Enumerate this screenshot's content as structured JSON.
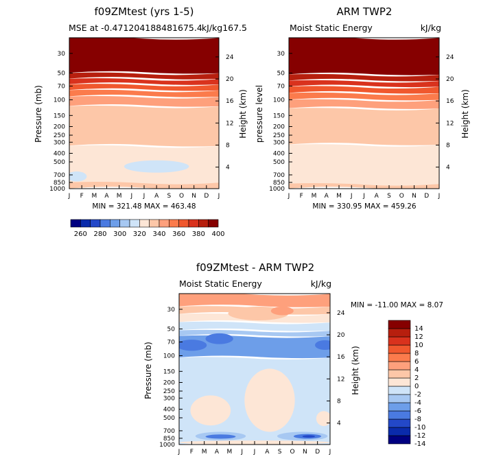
{
  "chart_data": [
    {
      "id": "p1",
      "type": "heatmap",
      "title": "f09ZMtest (yrs 1-5)",
      "subtitle_left": "MSE at -0.471204188481675.4",
      "subtitle_right": "kJ/kg167.5",
      "ylabel": "Pressure (mb)",
      "ylabel_right": "Height (km)",
      "months": [
        "J",
        "F",
        "M",
        "A",
        "M",
        "J",
        "J",
        "A",
        "S",
        "O",
        "N",
        "D",
        "J"
      ],
      "pressure_ticks": [
        30,
        50,
        70,
        100,
        150,
        200,
        250,
        300,
        400,
        500,
        700,
        850,
        1000
      ],
      "height_ticks": [
        4,
        8,
        12,
        16,
        20,
        24
      ],
      "min_max": "MIN = 321.48 MAX = 463.48",
      "layers": [
        {
          "p_top": 10,
          "p_bot": 50,
          "color": "#860000"
        },
        {
          "p_top": 50,
          "p_bot": 58,
          "color": "#b71f0e"
        },
        {
          "p_top": 58,
          "p_bot": 67,
          "color": "#d9321d"
        },
        {
          "p_top": 67,
          "p_bot": 78,
          "color": "#f0582e"
        },
        {
          "p_top": 78,
          "p_bot": 92,
          "color": "#fb7b4c"
        },
        {
          "p_top": 92,
          "p_bot": 118,
          "color": "#fea07c"
        },
        {
          "p_top": 118,
          "p_bot": 330,
          "color": "#fdc7a8"
        },
        {
          "p_top": 330,
          "p_bot": 1000,
          "color": "#fde6d6"
        },
        {
          "p_top": 850,
          "p_bot": 1000,
          "color": "#fdc7a8"
        }
      ],
      "blobs": [
        {
          "month": 0.6,
          "p": 730,
          "rx_months": 0.8,
          "p_top": 640,
          "p_bot": 830,
          "color": "#cfe4f8"
        },
        {
          "month": 7.0,
          "p": 560,
          "rx_months": 2.6,
          "p_top": 480,
          "p_bot": 660,
          "color": "#cfe4f8"
        }
      ]
    },
    {
      "id": "p2",
      "type": "heatmap",
      "title": "ARM TWP2",
      "subtitle_left": "Moist Static Energy",
      "subtitle_right": "kJ/kg",
      "ylabel": "pressure level",
      "ylabel_right": "Height (km)",
      "months": [
        "J",
        "F",
        "M",
        "A",
        "M",
        "J",
        "J",
        "A",
        "S",
        "O",
        "N",
        "D",
        "J"
      ],
      "pressure_ticks": [
        30,
        50,
        70,
        100,
        150,
        200,
        250,
        300,
        400,
        500,
        700,
        850,
        1000
      ],
      "height_ticks": [
        4,
        8,
        12,
        16,
        20,
        24
      ],
      "min_max": "MIN = 330.95 MAX = 459.26",
      "layers": [
        {
          "p_top": 10,
          "p_bot": 52,
          "color": "#860000"
        },
        {
          "p_top": 52,
          "p_bot": 61,
          "color": "#b71f0e"
        },
        {
          "p_top": 61,
          "p_bot": 71,
          "color": "#d9321d"
        },
        {
          "p_top": 71,
          "p_bot": 84,
          "color": "#f0582e"
        },
        {
          "p_top": 84,
          "p_bot": 100,
          "color": "#fb7b4c"
        },
        {
          "p_top": 100,
          "p_bot": 125,
          "color": "#fea07c"
        },
        {
          "p_top": 125,
          "p_bot": 320,
          "color": "#fdc7a8"
        },
        {
          "p_top": 320,
          "p_bot": 1000,
          "color": "#fde6d6"
        },
        {
          "p_top": 880,
          "p_bot": 1000,
          "color": "#fdc7a8"
        }
      ],
      "blobs": []
    },
    {
      "id": "p3",
      "type": "heatmap",
      "title": "f09ZMtest - ARM TWP2",
      "subtitle_left": "Moist Static Energy",
      "subtitle_right": "kJ/kg",
      "ylabel": "Pressure (mb)",
      "ylabel_right": "Height (km)",
      "months": [
        "J",
        "F",
        "M",
        "A",
        "M",
        "J",
        "J",
        "A",
        "S",
        "O",
        "N",
        "D",
        "J"
      ],
      "pressure_ticks": [
        30,
        50,
        70,
        100,
        150,
        200,
        250,
        300,
        400,
        500,
        700,
        850,
        1000
      ],
      "height_ticks": [
        4,
        8,
        12,
        16,
        20,
        24
      ],
      "min_max": "MIN = -11.00 MAX =    8.07",
      "layers": [
        {
          "p_top": 10,
          "p_bot": 28,
          "color": "#fea07c"
        },
        {
          "p_top": 28,
          "p_bot": 34,
          "color": "#fdc7a8"
        },
        {
          "p_top": 34,
          "p_bot": 42,
          "color": "#fde6d6"
        },
        {
          "p_top": 42,
          "p_bot": 52,
          "color": "#cfe4f8"
        },
        {
          "p_top": 52,
          "p_bot": 60,
          "color": "#a7c8f2"
        },
        {
          "p_top": 60,
          "p_bot": 105,
          "color": "#6d9ee9"
        },
        {
          "p_top": 105,
          "p_bot": 1000,
          "color": "#cfe4f8"
        }
      ],
      "blobs": [
        {
          "month": 1.0,
          "p": 76,
          "rx_months": 1.2,
          "p_top": 66,
          "p_bot": 88,
          "color": "#4a7ae1"
        },
        {
          "month": 3.2,
          "p": 64,
          "rx_months": 1.1,
          "p_top": 56,
          "p_bot": 74,
          "color": "#4a7ae1"
        },
        {
          "month": 11.6,
          "p": 76,
          "rx_months": 0.8,
          "p_top": 67,
          "p_bot": 86,
          "color": "#4a7ae1"
        },
        {
          "month": 6.3,
          "p": 34,
          "rx_months": 2.4,
          "p_top": 28,
          "p_bot": 40,
          "color": "#fdc7a8"
        },
        {
          "month": 8.2,
          "p": 31,
          "rx_months": 0.9,
          "p_top": 28,
          "p_bot": 35,
          "color": "#fea07c"
        },
        {
          "month": 7.2,
          "p": 330,
          "rx_months": 2.0,
          "p_top": 140,
          "p_bot": 720,
          "color": "#fde6d6"
        },
        {
          "month": 2.5,
          "p": 420,
          "rx_months": 1.6,
          "p_top": 280,
          "p_bot": 610,
          "color": "#fde6d6"
        },
        {
          "month": 11.5,
          "p": 500,
          "rx_months": 0.6,
          "p_top": 420,
          "p_bot": 620,
          "color": "#fde6d6"
        },
        {
          "month": 3.3,
          "p": 800,
          "rx_months": 2.0,
          "p_top": 720,
          "p_bot": 900,
          "color": "#a7c8f2"
        },
        {
          "month": 9.8,
          "p": 800,
          "rx_months": 2.0,
          "p_top": 720,
          "p_bot": 900,
          "color": "#a7c8f2"
        },
        {
          "month": 3.3,
          "p": 815,
          "rx_months": 1.2,
          "p_top": 770,
          "p_bot": 860,
          "color": "#4a7ae1"
        },
        {
          "month": 10.2,
          "p": 810,
          "rx_months": 1.1,
          "p_top": 760,
          "p_bot": 860,
          "color": "#4a7ae1"
        },
        {
          "month": 10.3,
          "p": 810,
          "rx_months": 0.5,
          "p_top": 785,
          "p_bot": 835,
          "color": "#2348c8"
        },
        {
          "month": 6.0,
          "p": 940,
          "rx_months": 6.0,
          "p_top": 900,
          "p_bot": 1000,
          "color": "#fde6d6"
        }
      ]
    }
  ],
  "colorbar_top": {
    "colors": [
      "#000080",
      "#0a2bab",
      "#2348c8",
      "#4a7ae1",
      "#6d9ee9",
      "#a7c8f2",
      "#cfe4f8",
      "#fde6d6",
      "#fdc7a8",
      "#fea07c",
      "#fb7b4c",
      "#f0582e",
      "#d9321d",
      "#b71f0e",
      "#860000"
    ],
    "labels": [
      "260",
      "280",
      "300",
      "320",
      "340",
      "360",
      "380",
      "400"
    ]
  },
  "colorbar_bottom": {
    "colors": [
      "#000080",
      "#0a2bab",
      "#2348c8",
      "#4a7ae1",
      "#6d9ee9",
      "#a7c8f2",
      "#cfe4f8",
      "#fde6d6",
      "#fdc7a8",
      "#fea07c",
      "#fb7b4c",
      "#f0582e",
      "#d9321d",
      "#b71f0e",
      "#860000"
    ],
    "labels": [
      "14",
      "12",
      "10",
      "8",
      "6",
      "4",
      "2",
      "0",
      "-2",
      "-4",
      "-6",
      "-8",
      "-10",
      "-12",
      "-14"
    ]
  }
}
